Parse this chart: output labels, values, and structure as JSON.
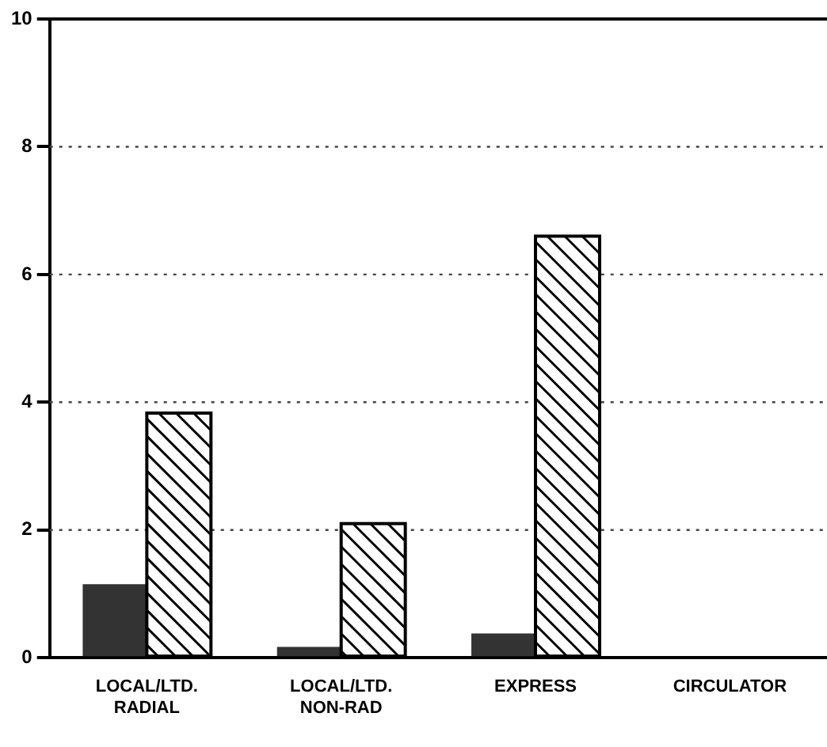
{
  "chart_data": {
    "type": "bar",
    "categories": [
      "LOCAL/LTD.\nRADIAL",
      "LOCAL/LTD.\nNON-RAD",
      "EXPRESS",
      "CIRCULATOR"
    ],
    "series": [
      {
        "color": "#333333",
        "values": [
          1.15,
          0.17,
          0.38,
          0
        ]
      },
      {
        "color": "#ffffff",
        "values": [
          3.83,
          2.1,
          6.6,
          0
        ]
      }
    ],
    "ylim": [
      0,
      10
    ],
    "yticks": [
      0,
      2,
      4,
      6,
      8,
      10
    ],
    "grid": "y",
    "legend": false
  }
}
